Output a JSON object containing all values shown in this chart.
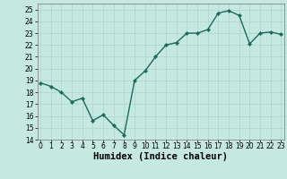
{
  "x": [
    0,
    1,
    2,
    3,
    4,
    5,
    6,
    7,
    8,
    9,
    10,
    11,
    12,
    13,
    14,
    15,
    16,
    17,
    18,
    19,
    20,
    21,
    22,
    23
  ],
  "y": [
    18.8,
    18.5,
    18.0,
    17.2,
    17.5,
    15.6,
    16.1,
    15.2,
    14.4,
    19.0,
    19.8,
    21.0,
    22.0,
    22.2,
    23.0,
    23.0,
    23.3,
    24.7,
    24.9,
    24.5,
    22.1,
    23.0,
    23.1,
    22.9
  ],
  "line_color": "#1a6b5a",
  "marker_color": "#1a6b5a",
  "bg_color": "#c5e8e0",
  "grid_color": "#b0d4cc",
  "xlabel": "Humidex (Indice chaleur)",
  "xlim": [
    -0.3,
    23.3
  ],
  "ylim": [
    14,
    25.5
  ],
  "yticks": [
    14,
    15,
    16,
    17,
    18,
    19,
    20,
    21,
    22,
    23,
    24,
    25
  ],
  "xticks": [
    0,
    1,
    2,
    3,
    4,
    5,
    6,
    7,
    8,
    9,
    10,
    11,
    12,
    13,
    14,
    15,
    16,
    17,
    18,
    19,
    20,
    21,
    22,
    23
  ],
  "tick_fontsize": 5.5,
  "xlabel_fontsize": 7.5,
  "marker_size": 2.2,
  "line_width": 1.0
}
